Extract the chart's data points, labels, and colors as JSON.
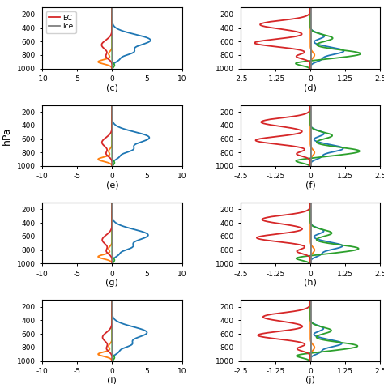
{
  "panels_left_labels": [
    "c",
    "e",
    "g",
    "i"
  ],
  "panels_right_labels": [
    "d",
    "f",
    "h",
    "j"
  ],
  "xlim_left": [
    -10,
    10
  ],
  "xlim_right": [
    -2.5,
    2.5
  ],
  "xticks_left": [
    -10,
    -5,
    0,
    5,
    10
  ],
  "xticks_right": [
    -2.5,
    -1.25,
    0,
    1.25,
    2.5
  ],
  "xticklabels_left": [
    "-10",
    "-5",
    "0",
    "5",
    "10"
  ],
  "xticklabels_right": [
    "-2.5",
    "-1.25",
    "0",
    "1.25",
    "2.5"
  ],
  "ylim": [
    1000,
    100
  ],
  "yticks": [
    200,
    400,
    600,
    800,
    1000
  ],
  "colors": {
    "blue": "#1f77b4",
    "orange": "#ff7f0e",
    "green": "#2ca02c",
    "red": "#d62728",
    "gray": "#7f7f7f"
  },
  "ylabel": "hPa",
  "nrows": 4,
  "ncols": 2,
  "legend_labels": [
    "EC",
    "Ice"
  ],
  "legend_colors_keys": [
    "red",
    "gray"
  ],
  "figsize": [
    4.74,
    4.74
  ],
  "dpi": 100
}
